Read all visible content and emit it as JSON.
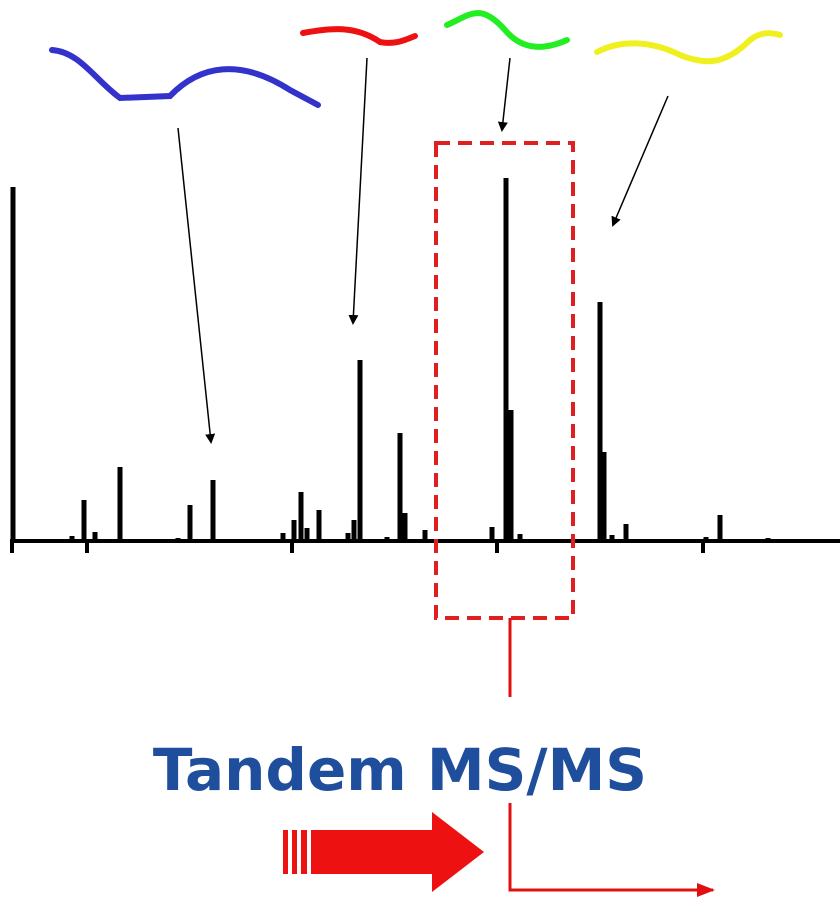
{
  "label": "Tandem MS/MS"
}
